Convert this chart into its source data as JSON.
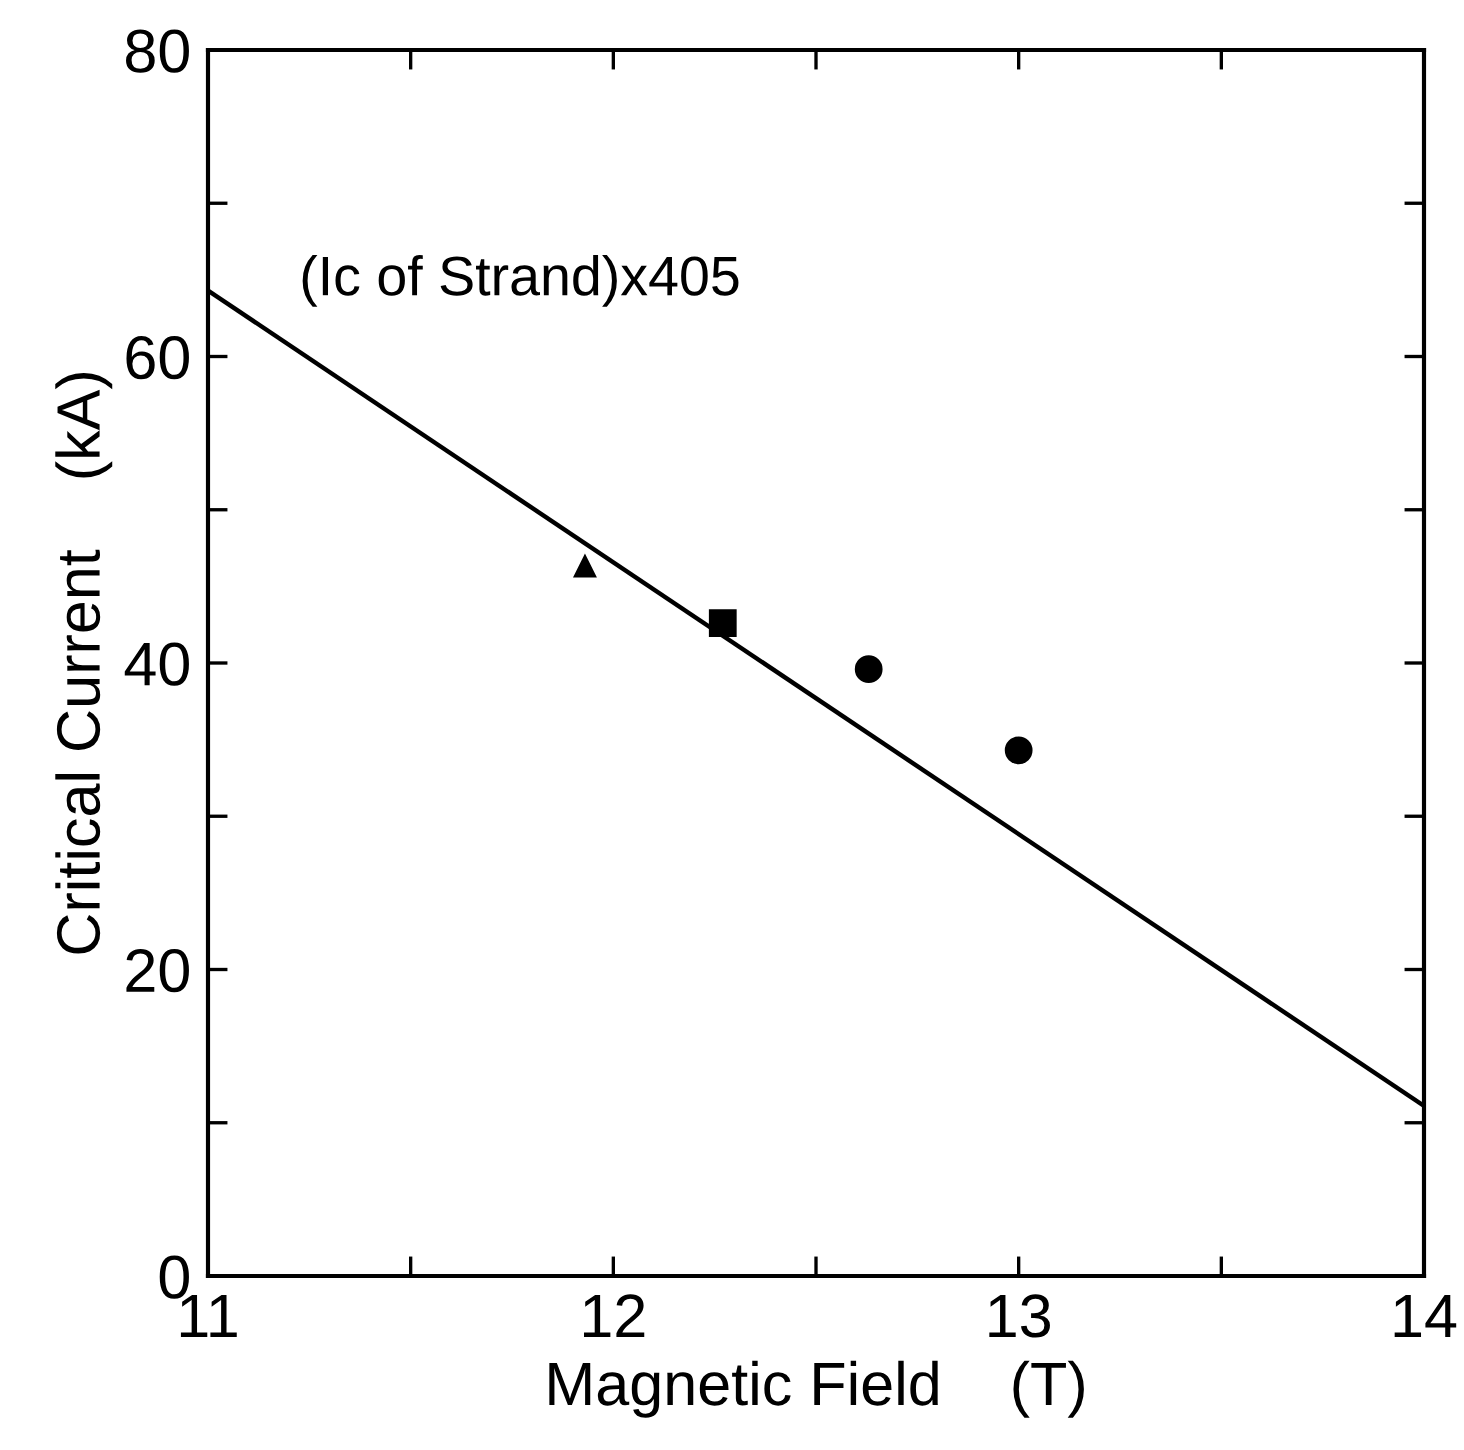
{
  "chart_data": {
    "type": "scatter",
    "xlabel": "Magnetic Field    (T)",
    "ylabel": "Critical Current    (kA)",
    "annotations": [
      "(Ic of Strand)x405"
    ],
    "series": [
      {
        "type": "line",
        "color": "#000000",
        "x": [
          11,
          14
        ],
        "values": [
          64.3,
          11.1
        ],
        "marker": "none",
        "line_style": "solid"
      },
      {
        "color": "#000000",
        "x": [
          11.93
        ],
        "values": [
          46.3
        ],
        "marker": "triangle"
      },
      {
        "color": "#000000",
        "x": [
          12.27
        ],
        "values": [
          42.6
        ],
        "marker": "square"
      },
      {
        "color": "#000000",
        "x": [
          12.63,
          13.0
        ],
        "values": [
          39.6,
          34.3
        ],
        "marker": "circle"
      }
    ],
    "xlim": [
      11,
      14
    ],
    "ylim": [
      0,
      80
    ],
    "xticks": [
      11,
      {
        "value": 11.5,
        "label": null
      },
      12,
      {
        "value": 12.5,
        "label": null
      },
      13,
      {
        "value": 13.5,
        "label": null
      },
      14
    ],
    "yticks": [
      0,
      {
        "value": 10,
        "label": null
      },
      20,
      {
        "value": 30,
        "label": null
      },
      40,
      {
        "value": 50,
        "label": null
      },
      60,
      {
        "value": 70,
        "label": null
      },
      80
    ],
    "grid": false,
    "legend": false
  }
}
